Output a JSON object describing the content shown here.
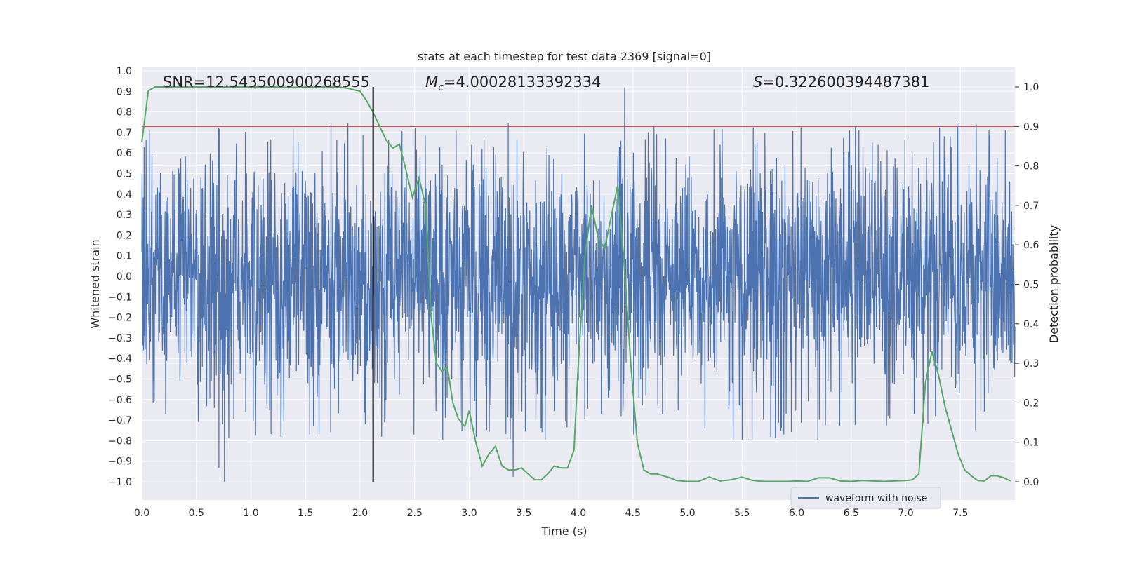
{
  "chart_data": {
    "type": "line",
    "title": "stats at each timestep for test data 2369 [signal=0]",
    "xlabel": "Time (s)",
    "ylabel": "Whitened strain",
    "y2label": "Detection probability",
    "xlim": [
      0.0,
      8.0
    ],
    "ylim": [
      -1.0,
      1.0
    ],
    "y2lim": [
      0.0,
      1.0
    ],
    "xticks": [
      "0.0",
      "0.5",
      "1.0",
      "1.5",
      "2.0",
      "2.5",
      "3.0",
      "3.5",
      "4.0",
      "4.5",
      "5.0",
      "5.5",
      "6.0",
      "6.5",
      "7.0",
      "7.5"
    ],
    "yticks": [
      "1.0",
      "0.9",
      "0.8",
      "0.7",
      "0.6",
      "0.5",
      "0.4",
      "0.3",
      "0.2",
      "0.1",
      "0.0",
      "−0.1",
      "−0.2",
      "−0.3",
      "−0.4",
      "−0.5",
      "−0.6",
      "−0.7",
      "−0.8",
      "−0.9",
      "−1.0"
    ],
    "y2ticks": [
      "1.0",
      "0.9",
      "0.8",
      "0.7",
      "0.6",
      "0.5",
      "0.4",
      "0.3",
      "0.2",
      "0.1",
      "0.0"
    ],
    "annotations": {
      "snr": "SNR=12.543500900268555",
      "mc_symbol": "M",
      "mc_sub": "c",
      "mc_value": "=4.00028133392334",
      "s_symbol": "S",
      "s_value": "=0.322600394487381"
    },
    "threshold": 0.9,
    "marker_time": 2.12,
    "legend": [
      "waveform with noise"
    ],
    "colors": {
      "strain": "#4c72b0",
      "probability": "#55a868",
      "threshold": "#c44e52",
      "marker": "#000000",
      "background": "#eaeaf2",
      "grid": "#ffffff"
    },
    "series": [
      {
        "name": "waveform with noise",
        "axis": "left",
        "note": "whitened noisy strain, roughly within [-1.0, 0.92]",
        "envelope_max": 0.92,
        "envelope_min": -1.0
      },
      {
        "name": "Detection probability",
        "axis": "right",
        "x": [
          0.0,
          0.06,
          0.12,
          0.2,
          0.3,
          0.4,
          0.5,
          0.6,
          0.7,
          0.8,
          0.9,
          1.0,
          1.1,
          1.2,
          1.3,
          1.4,
          1.5,
          1.6,
          1.7,
          1.8,
          1.9,
          2.0,
          2.06,
          2.12,
          2.18,
          2.24,
          2.3,
          2.36,
          2.42,
          2.48,
          2.54,
          2.6,
          2.65,
          2.7,
          2.75,
          2.8,
          2.85,
          2.9,
          2.96,
          3.0,
          3.06,
          3.12,
          3.18,
          3.24,
          3.3,
          3.36,
          3.42,
          3.48,
          3.54,
          3.6,
          3.66,
          3.72,
          3.78,
          3.84,
          3.9,
          3.96,
          4.0,
          4.06,
          4.12,
          4.18,
          4.24,
          4.3,
          4.36,
          4.42,
          4.48,
          4.54,
          4.6,
          4.66,
          4.72,
          4.78,
          4.84,
          4.9,
          5.0,
          5.1,
          5.2,
          5.3,
          5.4,
          5.5,
          5.6,
          5.7,
          5.8,
          5.9,
          6.0,
          6.1,
          6.2,
          6.3,
          6.4,
          6.5,
          6.6,
          6.7,
          6.8,
          6.9,
          7.0,
          7.06,
          7.12,
          7.18,
          7.24,
          7.3,
          7.36,
          7.42,
          7.48,
          7.54,
          7.6,
          7.66,
          7.72,
          7.78,
          7.84,
          7.9,
          7.96
        ],
        "values": [
          0.86,
          0.99,
          1.0,
          1.0,
          1.0,
          1.0,
          1.0,
          1.0,
          1.0,
          1.0,
          1.0,
          1.0,
          1.0,
          1.0,
          0.999,
          0.999,
          1.0,
          1.0,
          1.0,
          1.0,
          0.996,
          0.989,
          0.965,
          0.935,
          0.9,
          0.865,
          0.845,
          0.855,
          0.79,
          0.72,
          0.77,
          0.7,
          0.42,
          0.3,
          0.28,
          0.29,
          0.2,
          0.16,
          0.14,
          0.18,
          0.1,
          0.04,
          0.07,
          0.09,
          0.04,
          0.03,
          0.03,
          0.035,
          0.02,
          0.005,
          0.005,
          0.02,
          0.04,
          0.035,
          0.035,
          0.08,
          0.3,
          0.57,
          0.7,
          0.62,
          0.59,
          0.67,
          0.75,
          0.55,
          0.3,
          0.1,
          0.03,
          0.02,
          0.02,
          0.015,
          0.01,
          0.003,
          0.001,
          0.001,
          0.012,
          0.002,
          0.005,
          0.012,
          0.003,
          0.001,
          0.001,
          0.001,
          0.002,
          0.001,
          0.01,
          0.01,
          0.002,
          0.001,
          0.003,
          0.002,
          0.001,
          0.002,
          0.003,
          0.005,
          0.02,
          0.25,
          0.33,
          0.27,
          0.19,
          0.13,
          0.07,
          0.03,
          0.015,
          0.003,
          0.002,
          0.015,
          0.015,
          0.01,
          0.002
        ]
      }
    ]
  }
}
